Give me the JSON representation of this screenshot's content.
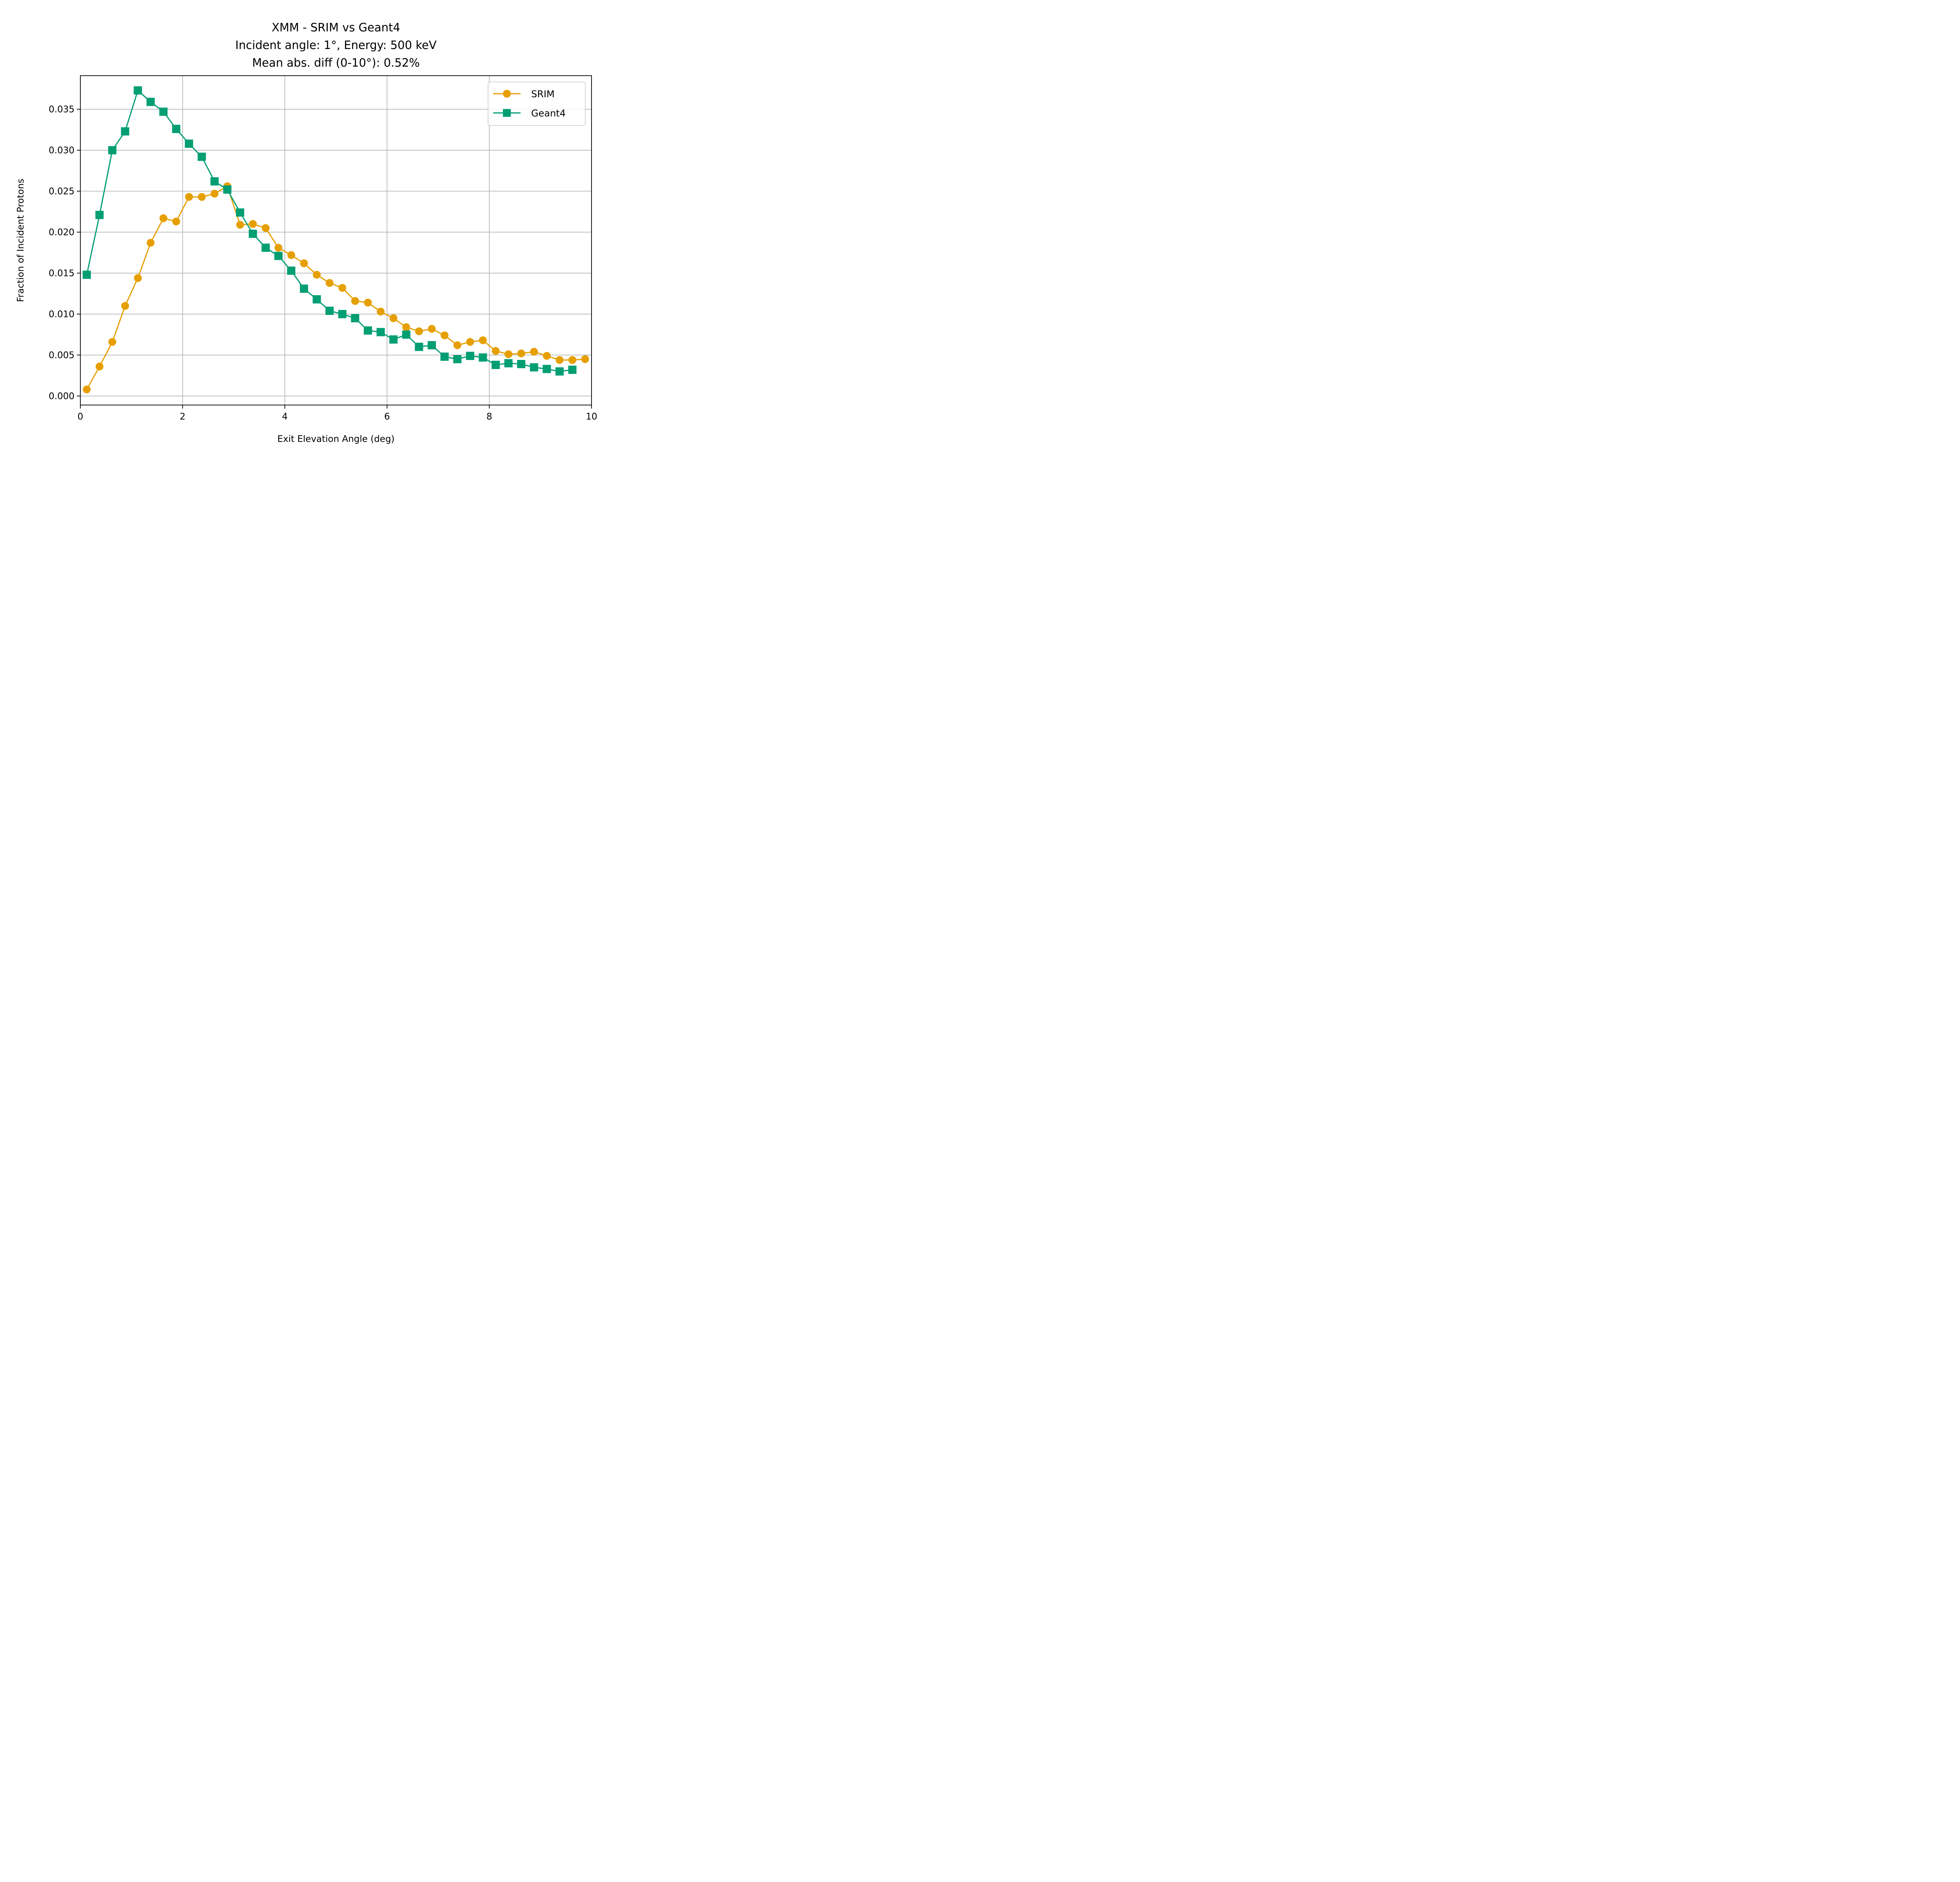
{
  "chart_data": {
    "type": "line",
    "title_lines": [
      "XMM - SRIM vs Geant4",
      "Incident angle: 1°, Energy: 500 keV",
      "Mean abs. diff (0-10°): 0.52%"
    ],
    "xlabel": "Exit Elevation Angle (deg)",
    "ylabel": "Fraction of Incident Protons",
    "xlim": [
      0,
      10
    ],
    "ylim": [
      -0.0011,
      0.0391
    ],
    "xticks": [
      0,
      2,
      4,
      6,
      8,
      10
    ],
    "xtick_labels": [
      "0",
      "2",
      "4",
      "6",
      "8",
      "10"
    ],
    "yticks": [
      0.0,
      0.005,
      0.01,
      0.015,
      0.02,
      0.025,
      0.03,
      0.035
    ],
    "ytick_labels": [
      "0.000",
      "0.005",
      "0.010",
      "0.015",
      "0.020",
      "0.025",
      "0.030",
      "0.035"
    ],
    "grid": true,
    "legend_position": "top-right",
    "series": [
      {
        "name": "SRIM",
        "color": "#e69f00",
        "marker": "circle",
        "x": [
          0.125,
          0.375,
          0.625,
          0.875,
          1.125,
          1.375,
          1.625,
          1.875,
          2.125,
          2.375,
          2.625,
          2.875,
          3.125,
          3.375,
          3.625,
          3.875,
          4.125,
          4.375,
          4.625,
          4.875,
          5.125,
          5.375,
          5.625,
          5.875,
          6.125,
          6.375,
          6.625,
          6.875,
          7.125,
          7.375,
          7.625,
          7.875,
          8.125,
          8.375,
          8.625,
          8.875,
          9.125,
          9.375,
          9.625,
          9.875
        ],
        "values": [
          0.0008,
          0.0036,
          0.0066,
          0.011,
          0.0144,
          0.0187,
          0.0217,
          0.0213,
          0.0243,
          0.0243,
          0.0247,
          0.0256,
          0.0209,
          0.021,
          0.0205,
          0.0181,
          0.0172,
          0.0162,
          0.0148,
          0.0138,
          0.0132,
          0.0116,
          0.0114,
          0.0103,
          0.0095,
          0.0084,
          0.0079,
          0.0082,
          0.0074,
          0.0062,
          0.0066,
          0.0068,
          0.0055,
          0.0051,
          0.0052,
          0.0054,
          0.0049,
          0.0044,
          0.0044,
          0.0045
        ]
      },
      {
        "name": "Geant4",
        "color": "#009e73",
        "marker": "square",
        "x": [
          0.125,
          0.375,
          0.625,
          0.875,
          1.125,
          1.375,
          1.625,
          1.875,
          2.125,
          2.375,
          2.625,
          2.875,
          3.125,
          3.375,
          3.625,
          3.875,
          4.125,
          4.375,
          4.625,
          4.875,
          5.125,
          5.375,
          5.625,
          5.875,
          6.125,
          6.375,
          6.625,
          6.875,
          7.125,
          7.375,
          7.625,
          7.875,
          8.125,
          8.375,
          8.625,
          8.875,
          9.125,
          9.375,
          9.625
        ],
        "values": [
          0.0148,
          0.0221,
          0.03,
          0.0323,
          0.0373,
          0.0359,
          0.0347,
          0.0326,
          0.0308,
          0.0292,
          0.0262,
          0.0252,
          0.0224,
          0.0198,
          0.0181,
          0.0171,
          0.0153,
          0.0131,
          0.0118,
          0.0104,
          0.01,
          0.0095,
          0.008,
          0.0078,
          0.0069,
          0.0075,
          0.006,
          0.0062,
          0.0048,
          0.0045,
          0.0049,
          0.0047,
          0.0038,
          0.004,
          0.0039,
          0.0035,
          0.0033,
          0.003,
          0.0032
        ]
      }
    ]
  }
}
